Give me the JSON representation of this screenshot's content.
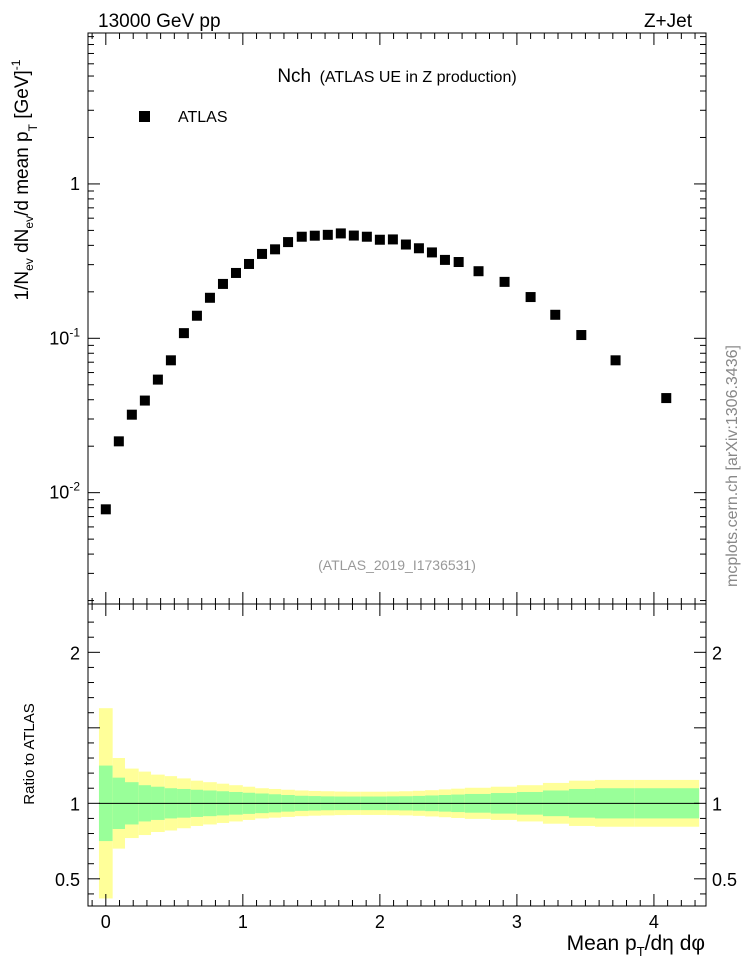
{
  "header": {
    "left": "13000 GeV pp",
    "right": "Z+Jet"
  },
  "plot_title": {
    "main": "Nch",
    "sub": "(ATLAS UE in Z production)"
  },
  "analysis_tag": "(ATLAS_2019_I1736531)",
  "watermark": "mcplots.cern.ch [arXiv:1306.3436]",
  "colors": {
    "marker": "#000000",
    "band_inner": "#99ff99",
    "band_outer": "#ffff99",
    "tag": "#999999"
  },
  "chart_data": [
    {
      "type": "scatter",
      "yscale": "log",
      "ylabel_parts": {
        "a": "1/N",
        "a_sub": "ev",
        "b": " dN",
        "b_sub": "ev",
        "c": "/d mean p",
        "c_sub": "T",
        "unit": " [GeV]",
        "unit_sup": "-1"
      },
      "xlabel_parts": {
        "a": "Mean p",
        "a_sub": "T",
        "b": "/dη dφ"
      },
      "xlim": [
        -0.13,
        4.38
      ],
      "ylim": [
        0.0019,
        9.5
      ],
      "yticks": [
        {
          "v": 0.01,
          "base": "10",
          "exp": "-2"
        },
        {
          "v": 0.1,
          "base": "10",
          "exp": "-1"
        },
        {
          "v": 1,
          "base": "1",
          "exp": ""
        }
      ],
      "xticks": [
        "0",
        "1",
        "2",
        "3",
        "4"
      ],
      "legend": {
        "label": "ATLAS",
        "position": "top-left"
      },
      "series": [
        {
          "name": "ATLAS",
          "x": [
            0.0,
            0.095,
            0.19,
            0.285,
            0.38,
            0.475,
            0.57,
            0.665,
            0.76,
            0.855,
            0.95,
            1.045,
            1.14,
            1.235,
            1.33,
            1.43,
            1.525,
            1.62,
            1.715,
            1.81,
            1.905,
            2.0,
            2.095,
            2.19,
            2.285,
            2.38,
            2.475,
            2.575,
            2.72,
            2.91,
            3.1,
            3.28,
            3.47,
            3.72,
            4.09
          ],
          "y": [
            0.0078,
            0.0215,
            0.032,
            0.0395,
            0.054,
            0.072,
            0.108,
            0.14,
            0.183,
            0.225,
            0.265,
            0.303,
            0.352,
            0.377,
            0.42,
            0.455,
            0.462,
            0.468,
            0.478,
            0.463,
            0.455,
            0.435,
            0.437,
            0.405,
            0.383,
            0.36,
            0.322,
            0.312,
            0.272,
            0.232,
            0.185,
            0.142,
            0.105,
            0.072,
            0.041
          ]
        }
      ]
    },
    {
      "type": "area",
      "ylabel": "Ratio to ATLAS",
      "xlim": [
        -0.13,
        4.38
      ],
      "ylim": [
        0.32,
        2.32
      ],
      "yticks": [
        "0.5",
        "1",
        "2"
      ],
      "yticks_v": [
        0.5,
        1,
        2
      ],
      "xticks": [
        "0",
        "1",
        "2",
        "3",
        "4"
      ],
      "bins": [
        {
          "x0": -0.05,
          "x1": 0.05,
          "inner": 0.25,
          "outer": 0.63
        },
        {
          "x0": 0.05,
          "x1": 0.14,
          "inner": 0.17,
          "outer": 0.3
        },
        {
          "x0": 0.14,
          "x1": 0.24,
          "inner": 0.14,
          "outer": 0.23
        },
        {
          "x0": 0.24,
          "x1": 0.33,
          "inner": 0.12,
          "outer": 0.21
        },
        {
          "x0": 0.33,
          "x1": 0.43,
          "inner": 0.11,
          "outer": 0.19
        },
        {
          "x0": 0.43,
          "x1": 0.52,
          "inner": 0.1,
          "outer": 0.18
        },
        {
          "x0": 0.52,
          "x1": 0.62,
          "inner": 0.095,
          "outer": 0.165
        },
        {
          "x0": 0.62,
          "x1": 0.71,
          "inner": 0.09,
          "outer": 0.15
        },
        {
          "x0": 0.71,
          "x1": 0.81,
          "inner": 0.085,
          "outer": 0.14
        },
        {
          "x0": 0.81,
          "x1": 0.9,
          "inner": 0.08,
          "outer": 0.13
        },
        {
          "x0": 0.9,
          "x1": 1.0,
          "inner": 0.075,
          "outer": 0.12
        },
        {
          "x0": 1.0,
          "x1": 1.09,
          "inner": 0.07,
          "outer": 0.11
        },
        {
          "x0": 1.09,
          "x1": 1.19,
          "inner": 0.065,
          "outer": 0.1
        },
        {
          "x0": 1.19,
          "x1": 1.28,
          "inner": 0.06,
          "outer": 0.095
        },
        {
          "x0": 1.28,
          "x1": 1.38,
          "inner": 0.055,
          "outer": 0.09
        },
        {
          "x0": 1.38,
          "x1": 1.48,
          "inner": 0.05,
          "outer": 0.085
        },
        {
          "x0": 1.48,
          "x1": 1.57,
          "inner": 0.048,
          "outer": 0.082
        },
        {
          "x0": 1.57,
          "x1": 1.67,
          "inner": 0.046,
          "outer": 0.08
        },
        {
          "x0": 1.67,
          "x1": 1.76,
          "inner": 0.045,
          "outer": 0.078
        },
        {
          "x0": 1.76,
          "x1": 1.86,
          "inner": 0.045,
          "outer": 0.077
        },
        {
          "x0": 1.86,
          "x1": 1.95,
          "inner": 0.045,
          "outer": 0.077
        },
        {
          "x0": 1.95,
          "x1": 2.05,
          "inner": 0.045,
          "outer": 0.077
        },
        {
          "x0": 2.05,
          "x1": 2.14,
          "inner": 0.046,
          "outer": 0.078
        },
        {
          "x0": 2.14,
          "x1": 2.24,
          "inner": 0.047,
          "outer": 0.08
        },
        {
          "x0": 2.24,
          "x1": 2.33,
          "inner": 0.049,
          "outer": 0.083
        },
        {
          "x0": 2.33,
          "x1": 2.43,
          "inner": 0.052,
          "outer": 0.087
        },
        {
          "x0": 2.43,
          "x1": 2.52,
          "inner": 0.055,
          "outer": 0.092
        },
        {
          "x0": 2.52,
          "x1": 2.62,
          "inner": 0.058,
          "outer": 0.097
        },
        {
          "x0": 2.62,
          "x1": 2.81,
          "inner": 0.062,
          "outer": 0.103
        },
        {
          "x0": 2.81,
          "x1": 3.0,
          "inner": 0.068,
          "outer": 0.11
        },
        {
          "x0": 3.0,
          "x1": 3.19,
          "inner": 0.075,
          "outer": 0.12
        },
        {
          "x0": 3.19,
          "x1": 3.38,
          "inner": 0.085,
          "outer": 0.135
        },
        {
          "x0": 3.38,
          "x1": 3.57,
          "inner": 0.095,
          "outer": 0.15
        },
        {
          "x0": 3.57,
          "x1": 3.86,
          "inner": 0.1,
          "outer": 0.155
        },
        {
          "x0": 3.86,
          "x1": 4.33,
          "inner": 0.1,
          "outer": 0.155
        }
      ]
    }
  ]
}
